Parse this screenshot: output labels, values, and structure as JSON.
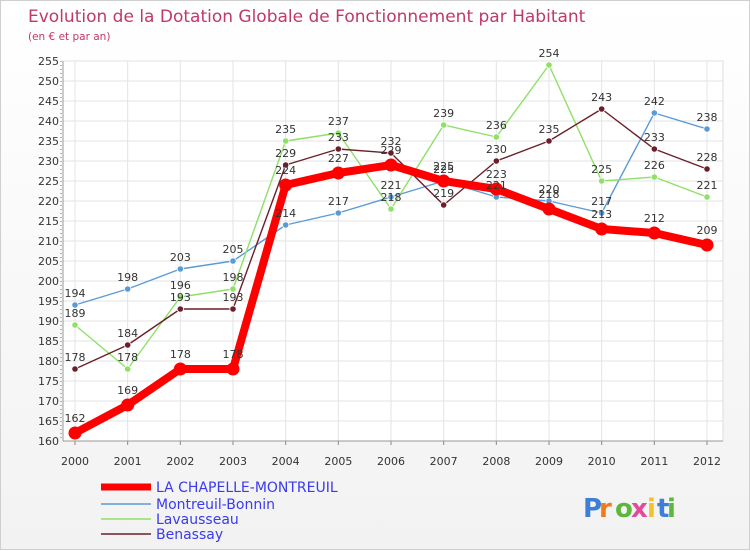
{
  "chart_data": {
    "type": "line",
    "title": "Evolution de la Dotation Globale de Fonctionnement par Habitant",
    "subtitle": "(en € et par an)",
    "xlabel": "",
    "ylabel": "",
    "categories": [
      "2000",
      "2001",
      "2002",
      "2003",
      "2004",
      "2005",
      "2006",
      "2007",
      "2008",
      "2009",
      "2010",
      "2011",
      "2012"
    ],
    "ylim": [
      160,
      255
    ],
    "yticks": [
      "160",
      "165",
      "170",
      "175",
      "180",
      "185",
      "190",
      "195",
      "200",
      "205",
      "210",
      "215",
      "220",
      "225",
      "230",
      "235",
      "240",
      "245",
      "250",
      "255"
    ],
    "grid": true,
    "legend": "bottom-left",
    "series": [
      {
        "name": "Montreuil-Bonnin",
        "color": "#5b9bd5",
        "values": [
          194,
          198,
          203,
          205,
          214,
          217,
          221,
          225,
          221,
          220,
          217,
          242,
          238
        ]
      },
      {
        "name": "Lavausseau",
        "color": "#8ee067",
        "values": [
          189,
          178,
          196,
          198,
          235,
          237,
          218,
          239,
          236,
          254,
          225,
          226,
          221
        ]
      },
      {
        "name": "Benassay",
        "color": "#6b1f2a",
        "values": [
          178,
          184,
          193,
          193,
          229,
          233,
          232,
          219,
          230,
          235,
          243,
          233,
          228
        ]
      },
      {
        "name": "LA CHAPELLE-MONTREUIL",
        "color": "#ff0000",
        "values": [
          162,
          169,
          178,
          178,
          224,
          227,
          229,
          225,
          223,
          218,
          213,
          212,
          209
        ]
      }
    ]
  },
  "legend_items": [
    "LA CHAPELLE-MONTREUIL",
    "Montreuil-Bonnin",
    "Lavausseau",
    "Benassay"
  ],
  "brand": {
    "text": "Proxiti",
    "letters": [
      "P",
      "r",
      "o",
      "x",
      "i",
      "t",
      "i"
    ],
    "colors": [
      "#3d7fd6",
      "#f07a1a",
      "#5cb83a",
      "#e04b9a",
      "#f2c12e",
      "#3d7fd6",
      "#5cb83a"
    ]
  }
}
